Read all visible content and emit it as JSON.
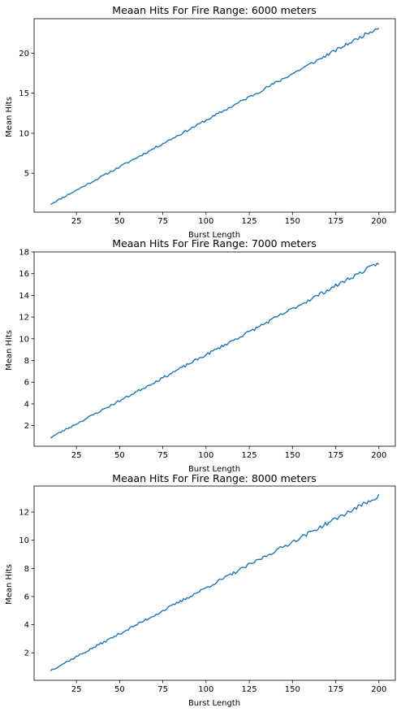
{
  "figure": {
    "background": "#ffffff"
  },
  "chart_data": [
    {
      "type": "line",
      "title": "Meaan Hits For Fire Range: 6000 meters",
      "xlabel": "Burst Length",
      "ylabel": "Mean Hits",
      "xlim": [
        0.5,
        209.5
      ],
      "ylim": [
        0.15,
        24.3
      ],
      "xticks": [
        25,
        50,
        75,
        100,
        125,
        150,
        175,
        200
      ],
      "xtick_labels": [
        "25",
        "50",
        "75",
        "100",
        "125",
        "150",
        "175",
        "200"
      ],
      "yticks": [
        5,
        10,
        15,
        20
      ],
      "ytick_labels": [
        "5",
        "10",
        "15",
        "20"
      ],
      "grid": false,
      "series": [
        {
          "color": "#1f77b4",
          "x_start": 10,
          "x_end": 200,
          "y_start": 1.15,
          "y_end": 23.25,
          "noise": 0.22,
          "seed": 11
        }
      ]
    },
    {
      "type": "line",
      "title": "Meaan Hits For Fire Range: 7000 meters",
      "xlabel": "Burst Length",
      "ylabel": "Mean Hits",
      "xlim": [
        0.5,
        209.5
      ],
      "ylim": [
        0.1,
        18.0
      ],
      "xticks": [
        25,
        50,
        75,
        100,
        125,
        150,
        175,
        200
      ],
      "xtick_labels": [
        "25",
        "50",
        "75",
        "100",
        "125",
        "150",
        "175",
        "200"
      ],
      "yticks": [
        2,
        4,
        6,
        8,
        10,
        12,
        14,
        16,
        18
      ],
      "ytick_labels": [
        "2",
        "4",
        "6",
        "8",
        "10",
        "12",
        "14",
        "16",
        "18"
      ],
      "grid": false,
      "series": [
        {
          "color": "#1f77b4",
          "x_start": 10,
          "x_end": 200,
          "y_start": 0.9,
          "y_end": 17.0,
          "noise": 0.18,
          "seed": 23
        }
      ]
    },
    {
      "type": "line",
      "title": "Meaan Hits For Fire Range: 8000 meters",
      "xlabel": "Burst Length",
      "ylabel": "Mean Hits",
      "xlim": [
        0.5,
        209.5
      ],
      "ylim": [
        0.05,
        13.85
      ],
      "xticks": [
        25,
        50,
        75,
        100,
        125,
        150,
        175,
        200
      ],
      "xtick_labels": [
        "25",
        "50",
        "75",
        "100",
        "125",
        "150",
        "175",
        "200"
      ],
      "yticks": [
        2,
        4,
        6,
        8,
        10,
        12
      ],
      "ytick_labels": [
        "2",
        "4",
        "6",
        "8",
        "10",
        "12"
      ],
      "grid": false,
      "series": [
        {
          "color": "#1f77b4",
          "x_start": 10,
          "x_end": 200,
          "y_start": 0.75,
          "y_end": 13.15,
          "noise": 0.15,
          "seed": 37
        }
      ]
    }
  ]
}
